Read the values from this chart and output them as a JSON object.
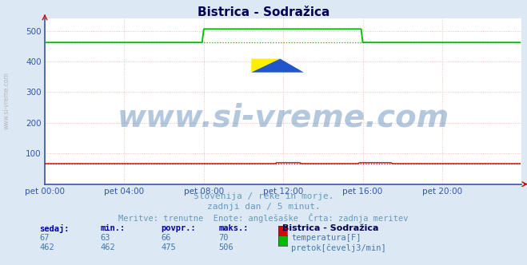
{
  "title": "Bistrica - Sodražica",
  "bg_color": "#dce9f5",
  "plot_bg_color": "#ffffff",
  "grid_color": "#ffaaaa",
  "yticks": [
    100,
    200,
    300,
    400,
    500
  ],
  "ylim": [
    0,
    540
  ],
  "xlim": [
    0,
    288
  ],
  "xtick_labels": [
    "pet 00:00",
    "pet 04:00",
    "pet 08:00",
    "pet 12:00",
    "pet 16:00",
    "pet 20:00"
  ],
  "xtick_positions": [
    0,
    48,
    96,
    144,
    192,
    240
  ],
  "temp_color": "#dd0000",
  "flow_color": "#00bb00",
  "temp_value": 67,
  "flow_base": 462,
  "flow_peak": 506,
  "flow_peak_start": 96,
  "flow_peak_end": 192,
  "watermark": "www.si-vreme.com",
  "watermark_color": "#4477aa",
  "watermark_alpha": 0.4,
  "watermark_fontsize": 28,
  "subtitle1": "Slovenija / reke in morje.",
  "subtitle2": "zadnji dan / 5 minut.",
  "subtitle3": "Meritve: trenutne  Enote: anglešaške  Črta: zadnja meritev",
  "subtitle_color": "#6699bb",
  "subtitle_fontsize": 8,
  "legend_title": "Bistrica - Sodražica",
  "legend_title_color": "#000055",
  "legend_color": "#4477aa",
  "label_color": "#0000aa",
  "sidebar_text": "www.si-vreme.com",
  "table_headers": [
    "sedaj:",
    "min.:",
    "povpr.:",
    "maks.:"
  ],
  "table_temp": [
    67,
    63,
    66,
    70
  ],
  "table_flow": [
    462,
    462,
    475,
    506
  ],
  "temp_label": "temperatura[F]",
  "flow_label": "pretok[čevelj3/min]",
  "axis_color": "#3355aa",
  "tick_color": "#3355aa",
  "tick_fontsize": 7.5
}
